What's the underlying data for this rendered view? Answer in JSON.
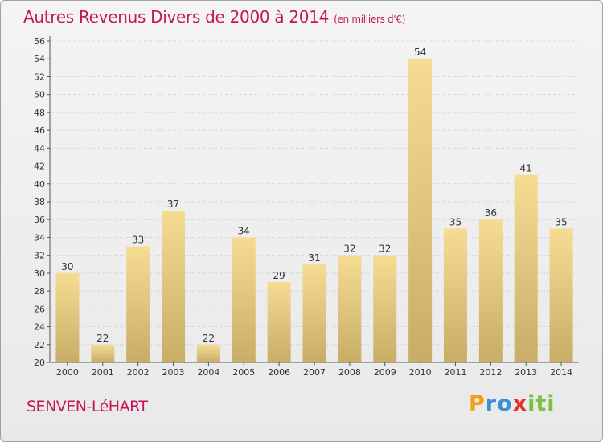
{
  "header": {
    "title": "Autres Revenus Divers de 2000 à 2014",
    "subtitle": "(en milliers d'€)"
  },
  "footer": {
    "place": "SENVEN-LéHART",
    "logo_letters": [
      "P",
      "r",
      "o",
      "x",
      "i",
      "t",
      "i"
    ],
    "logo_colors": [
      "#f2a20f",
      "#3d8fd6",
      "#3d8fd6",
      "#e8312a",
      "#7bc043",
      "#7bc043",
      "#7bc043"
    ]
  },
  "colors": {
    "bar_light": "#f6dc93",
    "bar_dark": "#c8ad67",
    "grid": "#c8c8c8",
    "title": "#c2185b",
    "text": "#333333"
  },
  "chart_data": {
    "type": "bar",
    "categories": [
      "2000",
      "2001",
      "2002",
      "2003",
      "2004",
      "2005",
      "2006",
      "2007",
      "2008",
      "2009",
      "2010",
      "2011",
      "2012",
      "2013",
      "2014"
    ],
    "values": [
      30,
      22,
      33,
      37,
      22,
      34,
      29,
      31,
      32,
      32,
      54,
      35,
      36,
      41,
      35
    ],
    "title": "Autres Revenus Divers de 2000 à 2014",
    "subtitle": "(en milliers d'€)",
    "ylim": [
      20,
      56
    ],
    "yticks": [
      20,
      22,
      24,
      26,
      28,
      30,
      32,
      34,
      36,
      38,
      40,
      42,
      44,
      46,
      48,
      50,
      52,
      54,
      56
    ],
    "grid": true,
    "data_labels": true
  }
}
